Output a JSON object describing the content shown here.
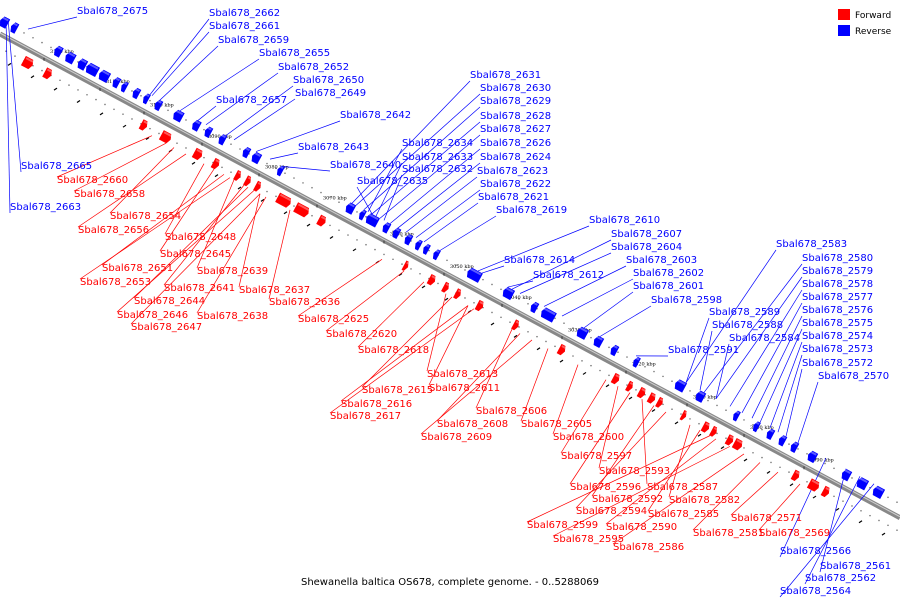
{
  "caption": "Shewanella baltica OS678, complete genome. - 0..5288069",
  "legend": [
    {
      "label": "Forward",
      "color": "#ff0000"
    },
    {
      "label": "Reverse",
      "color": "#0000ff"
    }
  ],
  "colors": {
    "forward": "#ff0000",
    "reverse": "#0000ff",
    "backbone": "#888888"
  },
  "ticks": [
    {
      "label": "3120 kbp"
    },
    {
      "label": "3110 kbp"
    },
    {
      "label": "3100 kbp"
    },
    {
      "label": "3090 kbp"
    },
    {
      "label": "3080 kbp"
    },
    {
      "label": "3070 kbp"
    },
    {
      "label": "3060 kbp"
    },
    {
      "label": "3050 kbp"
    },
    {
      "label": "3040 kbp"
    },
    {
      "label": "3030 kbp"
    },
    {
      "label": "3020 kbp"
    },
    {
      "label": "3010 kbp"
    },
    {
      "label": "3000 kbp"
    },
    {
      "label": "2990 kbp"
    }
  ],
  "reverse_labels": [
    "Sbal678_2675",
    "Sbal678_2662",
    "Sbal678_2661",
    "Sbal678_2659",
    "Sbal678_2655",
    "Sbal678_2652",
    "Sbal678_2650",
    "Sbal678_2649",
    "Sbal678_2657",
    "Sbal678_2642",
    "Sbal678_2643",
    "Sbal678_2665",
    "Sbal678_2663",
    "Sbal678_2640",
    "Sbal678_2631",
    "Sbal678_2630",
    "Sbal678_2629",
    "Sbal678_2628",
    "Sbal678_2627",
    "Sbal678_2634",
    "Sbal678_2626",
    "Sbal678_2633",
    "Sbal678_2624",
    "Sbal678_2632",
    "Sbal678_2623",
    "Sbal678_2635",
    "Sbal678_2622",
    "Sbal678_2621",
    "Sbal678_2619",
    "Sbal678_2610",
    "Sbal678_2607",
    "Sbal678_2604",
    "Sbal678_2614",
    "Sbal678_2603",
    "Sbal678_2612",
    "Sbal678_2602",
    "Sbal678_2601",
    "Sbal678_2598",
    "Sbal678_2591",
    "Sbal678_2583",
    "Sbal678_2580",
    "Sbal678_2579",
    "Sbal678_2578",
    "Sbal678_2577",
    "Sbal678_2589",
    "Sbal678_2576",
    "Sbal678_2588",
    "Sbal678_2575",
    "Sbal678_2584",
    "Sbal678_2574",
    "Sbal678_2573",
    "Sbal678_2572",
    "Sbal678_2570",
    "Sbal678_2566",
    "Sbal678_2561",
    "Sbal678_2562",
    "Sbal678_2564"
  ],
  "forward_labels": [
    "Sbal678_2660",
    "Sbal678_2658",
    "Sbal678_2654",
    "Sbal678_2656",
    "Sbal678_2648",
    "Sbal678_2645",
    "Sbal678_2651",
    "Sbal678_2639",
    "Sbal678_2653",
    "Sbal678_2641",
    "Sbal678_2637",
    "Sbal678_2644",
    "Sbal678_2636",
    "Sbal678_2646",
    "Sbal678_2638",
    "Sbal678_2647",
    "Sbal678_2625",
    "Sbal678_2620",
    "Sbal678_2618",
    "Sbal678_2613",
    "Sbal678_2615",
    "Sbal678_2611",
    "Sbal678_2616",
    "Sbal678_2617",
    "Sbal678_2606",
    "Sbal678_2608",
    "Sbal678_2605",
    "Sbal678_2609",
    "Sbal678_2600",
    "Sbal678_2597",
    "Sbal678_2593",
    "Sbal678_2596",
    "Sbal678_2587",
    "Sbal678_2592",
    "Sbal678_2582",
    "Sbal678_2594",
    "Sbal678_2585",
    "Sbal678_2599",
    "Sbal678_2590",
    "Sbal678_2571",
    "Sbal678_2581",
    "Sbal678_2569",
    "Sbal678_2595",
    "Sbal678_2586"
  ]
}
